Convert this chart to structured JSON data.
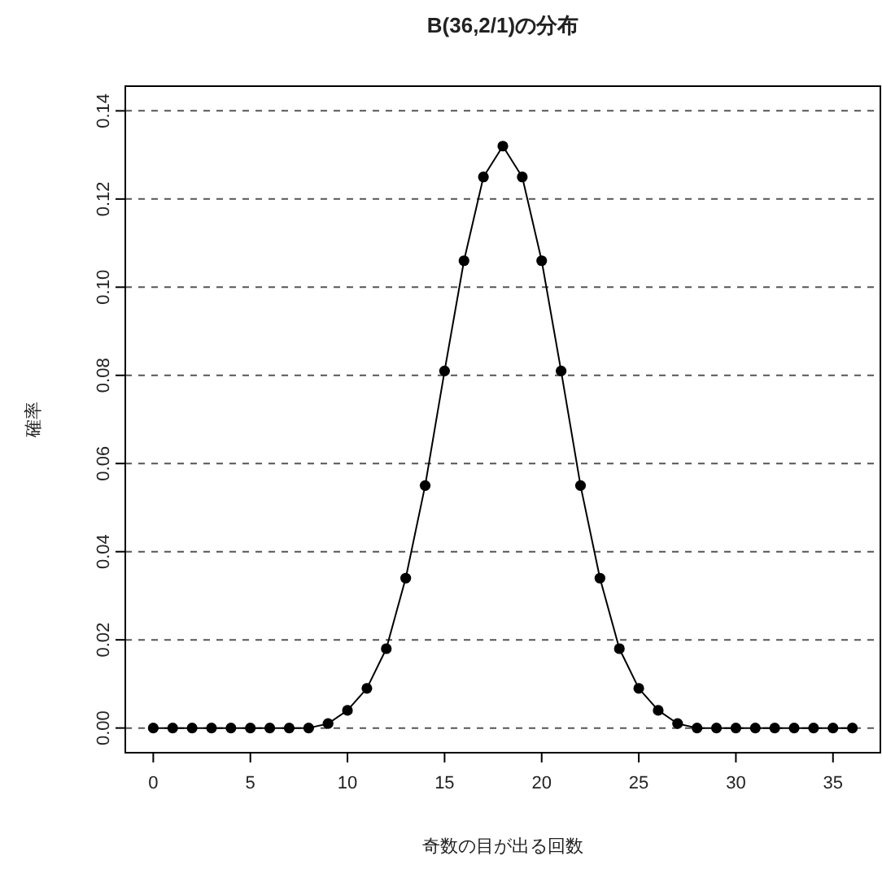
{
  "chart_data": {
    "type": "line",
    "title": "B(36,2/1)の分布",
    "xlabel": "奇数の目が出る回数",
    "ylabel": "確率",
    "x": [
      0,
      1,
      2,
      3,
      4,
      5,
      6,
      7,
      8,
      9,
      10,
      11,
      12,
      13,
      14,
      15,
      16,
      17,
      18,
      19,
      20,
      21,
      22,
      23,
      24,
      25,
      26,
      27,
      28,
      29,
      30,
      31,
      32,
      33,
      34,
      35,
      36
    ],
    "series": [
      {
        "color": "#000000",
        "values": [
          0,
          0,
          0,
          0,
          0,
          0,
          0,
          0,
          0,
          0.001,
          0.004,
          0.009,
          0.018,
          0.034,
          0.055,
          0.081,
          0.106,
          0.125,
          0.132,
          0.125,
          0.106,
          0.081,
          0.055,
          0.034,
          0.018,
          0.009,
          0.004,
          0.001,
          0,
          0,
          0,
          0,
          0,
          0,
          0,
          0,
          0
        ]
      }
    ],
    "xlim": [
      -1.44,
      37.44
    ],
    "ylim": [
      -0.0056,
      0.1456
    ],
    "xticks": [
      0,
      5,
      10,
      15,
      20,
      25,
      30,
      35
    ],
    "yticks": [
      {
        "value": 0,
        "label": "0.00"
      },
      {
        "value": 0.02,
        "label": "0.02"
      },
      {
        "value": 0.04,
        "label": "0.04"
      },
      {
        "value": 0.06,
        "label": "0.06"
      },
      {
        "value": 0.08,
        "label": "0.08"
      },
      {
        "value": 0.1,
        "label": "0.10"
      },
      {
        "value": 0.12,
        "label": "0.12"
      },
      {
        "value": 0.14,
        "label": "0.14"
      }
    ],
    "grid": "y",
    "marker": "circle",
    "line_style": "solid"
  }
}
